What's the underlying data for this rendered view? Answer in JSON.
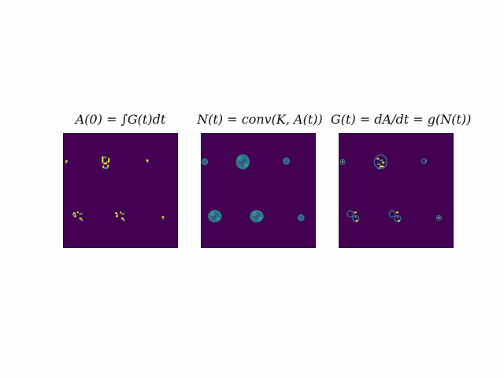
{
  "panels": [
    {
      "title": "A(0) = ∫G(t)dt",
      "kind": "seed"
    },
    {
      "title": "N(t) = conv(K, A(t))",
      "kind": "potential"
    },
    {
      "title": "G(t) = dA/dt = g(N(t))",
      "kind": "growth"
    }
  ],
  "colors": {
    "background": "#440154",
    "teal": "#31688e",
    "green": "#35b779",
    "yellow": "#fde725",
    "blue_mid": "#3e4a89"
  }
}
